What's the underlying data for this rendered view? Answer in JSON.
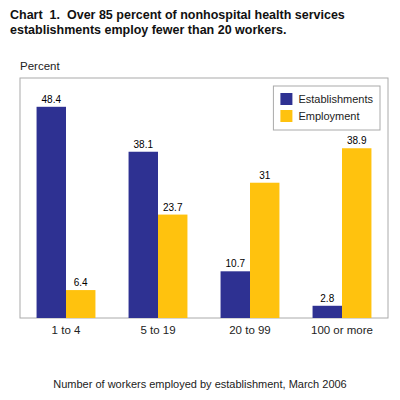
{
  "chart_data": {
    "type": "bar",
    "title": "Chart  1.  Over 85 percent of nonhospital health services\nestablishments employ fewer than 20 workers.",
    "y_label": "Percent",
    "x_label": "Number of workers employed by establishment, March 2006",
    "categories": [
      "1 to 4",
      "5 to 19",
      "20 to 99",
      "100 or more"
    ],
    "series": [
      {
        "name": "Establishments",
        "color": "#2E3192",
        "values": [
          48.4,
          38.1,
          10.7,
          2.8
        ]
      },
      {
        "name": "Employment",
        "color": "#FFC20E",
        "values": [
          6.4,
          23.7,
          31.0,
          38.9
        ]
      }
    ],
    "ylim": [
      0,
      55
    ],
    "grid": false,
    "legend": "upper right",
    "data_labels": true,
    "tick_labels": "x"
  }
}
